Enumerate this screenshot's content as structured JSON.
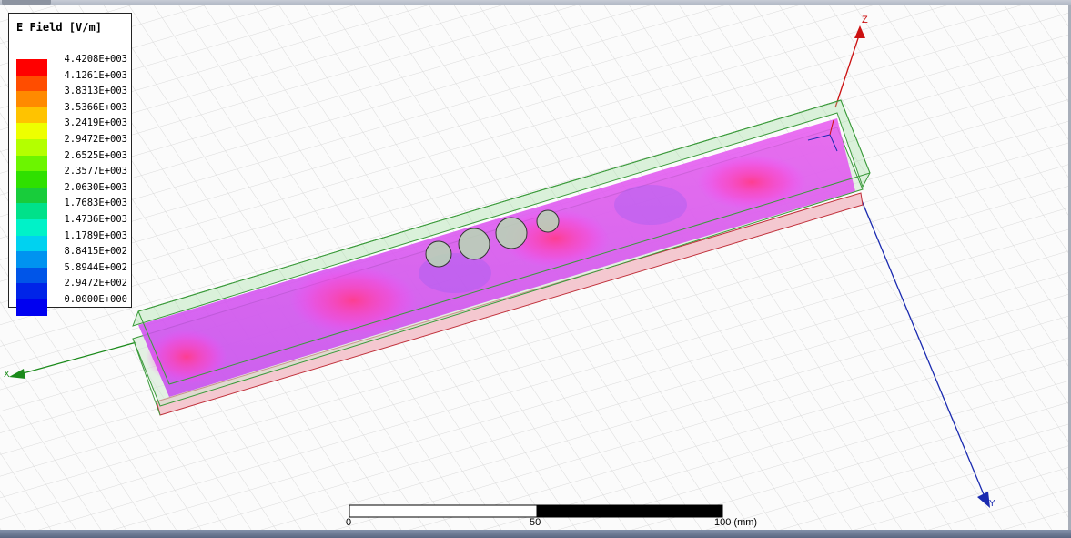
{
  "legend": {
    "title": "E Field [V/m]",
    "colors": [
      "#ff0000",
      "#ff4d00",
      "#ff8a00",
      "#ffc300",
      "#eeff00",
      "#b4ff00",
      "#6cf500",
      "#2fe000",
      "#18cc3b",
      "#00e18a",
      "#00f2c8",
      "#00d2f0",
      "#0093f0",
      "#0055e8",
      "#0024e8",
      "#0000f0"
    ],
    "values": [
      "4.4208E+003",
      "4.1261E+003",
      "3.8313E+003",
      "3.5366E+003",
      "3.2419E+003",
      "2.9472E+003",
      "2.6525E+003",
      "2.3577E+003",
      "2.0630E+003",
      "1.7683E+003",
      "1.4736E+003",
      "1.1789E+003",
      "8.8415E+002",
      "5.8944E+002",
      "2.9472E+002",
      "0.0000E+000"
    ]
  },
  "axes": {
    "z_label": "Z",
    "x_label": "X",
    "y_label": "Y",
    "z_color": "#cc1111",
    "x_color": "#1a8a1a",
    "y_color": "#1a2ab0"
  },
  "scale_bar": {
    "tick_0": "0",
    "tick_50": "50",
    "tick_100": "100 (mm)"
  }
}
